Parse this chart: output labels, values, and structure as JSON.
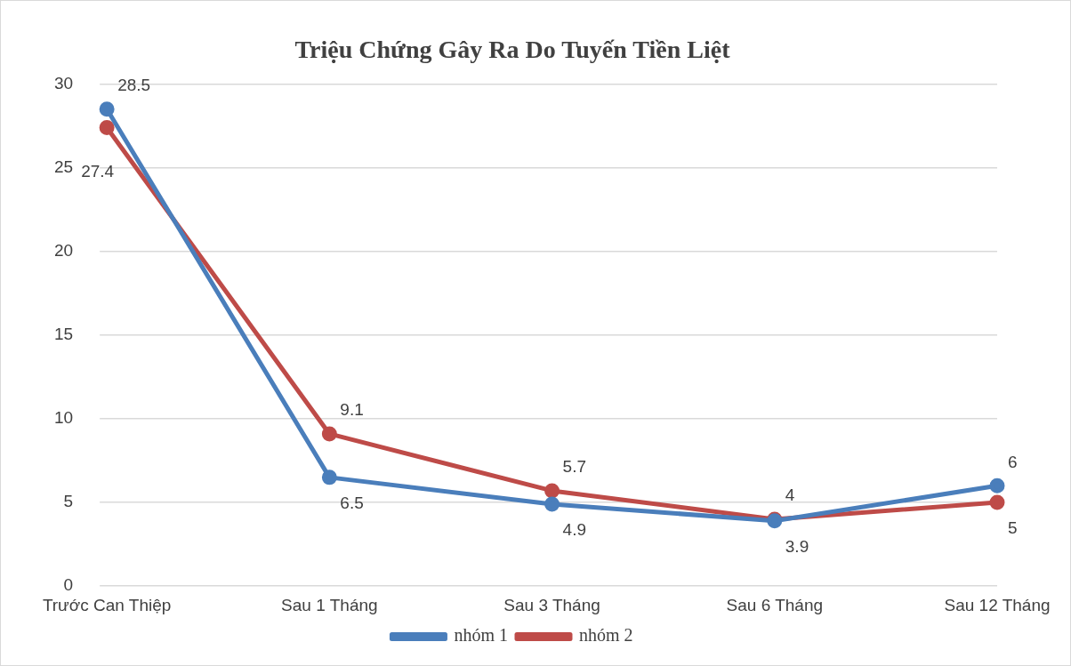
{
  "chart_data": {
    "type": "line",
    "title": "Triệu Chứng Gây Ra Do Tuyến Tiền Liệt",
    "categories": [
      "Trước Can Thiệp",
      "Sau 1 Tháng",
      "Sau 3 Tháng",
      "Sau 6 Tháng",
      "Sau 12 Tháng"
    ],
    "series": [
      {
        "name": "nhóm 1",
        "color": "#4a7ebb",
        "values": [
          28.5,
          6.5,
          4.9,
          3.9,
          6
        ],
        "value_labels": [
          "28.5",
          "6.5",
          "4.9",
          "3.9",
          "6"
        ]
      },
      {
        "name": "nhóm 2",
        "color": "#be4b48",
        "values": [
          27.4,
          9.1,
          5.7,
          4,
          5
        ],
        "value_labels": [
          "27.4",
          "9.1",
          "5.7",
          "4",
          "5"
        ]
      }
    ],
    "ylim": [
      0,
      30
    ],
    "yticks": [
      0,
      5,
      10,
      15,
      20,
      25,
      30
    ],
    "grid": "y",
    "legend": "bottom",
    "marker": "circle",
    "line_style": "solid"
  }
}
